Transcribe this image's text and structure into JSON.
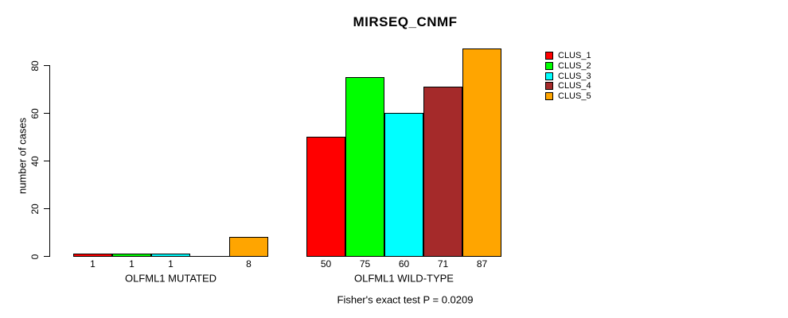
{
  "title": "MIRSEQ_CNMF",
  "footer": "Fisher's exact test P = 0.0209",
  "chart_data": {
    "type": "bar",
    "title": "MIRSEQ_CNMF",
    "xlabel": "",
    "ylabel": "number of cases",
    "annotation": "Fisher's exact test P = 0.0209",
    "categories": [
      "OLFML1 MUTATED",
      "OLFML1 WILD-TYPE"
    ],
    "series": [
      {
        "name": "CLUS_1",
        "color": "#FF0000",
        "values": [
          1,
          50
        ]
      },
      {
        "name": "CLUS_2",
        "color": "#00FF00",
        "values": [
          1,
          75
        ]
      },
      {
        "name": "CLUS_3",
        "color": "#00FFFF",
        "values": [
          1,
          60
        ]
      },
      {
        "name": "CLUS_4",
        "color": "#A52A2A",
        "values": [
          0,
          71
        ]
      },
      {
        "name": "CLUS_5",
        "color": "#FFA500",
        "values": [
          8,
          87
        ]
      }
    ],
    "bar_value_labels": [
      [
        "1",
        "1",
        "1",
        null,
        "8"
      ],
      [
        "50",
        "75",
        "60",
        "71",
        "87"
      ]
    ],
    "yticks": [
      0,
      20,
      40,
      60,
      80
    ],
    "ylim": [
      0,
      88
    ],
    "grid": false,
    "legend_position": "top-right",
    "background": "#ffffff",
    "text_color": "#000000"
  }
}
